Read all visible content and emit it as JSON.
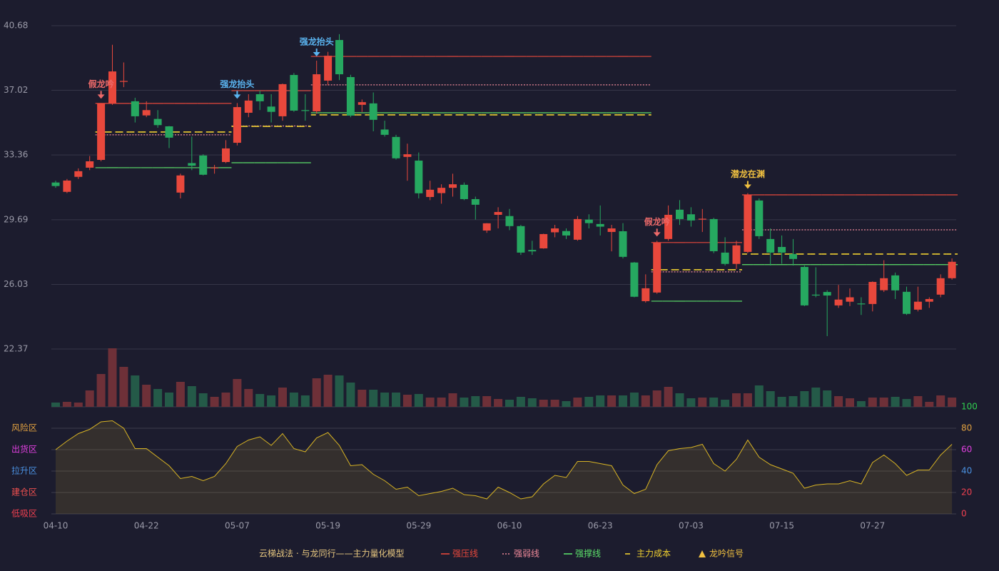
{
  "chart_data": {
    "type": "candlestick",
    "title": "云梯战法 · 与龙同行——主力量化模型",
    "categories": [
      "04-10",
      null,
      null,
      null,
      null,
      null,
      null,
      null,
      "04-22",
      null,
      null,
      null,
      null,
      null,
      null,
      null,
      "05-07",
      null,
      null,
      null,
      null,
      null,
      null,
      null,
      "05-19",
      null,
      null,
      null,
      null,
      null,
      null,
      null,
      "05-29",
      null,
      null,
      null,
      null,
      null,
      null,
      null,
      "06-10",
      null,
      null,
      null,
      null,
      null,
      null,
      null,
      "06-23",
      null,
      null,
      null,
      null,
      null,
      null,
      null,
      "07-03",
      null,
      null,
      null,
      null,
      null,
      null,
      null,
      "07-15",
      null,
      null,
      null,
      null,
      null,
      null,
      null,
      "07-27",
      null,
      null,
      null,
      null,
      null,
      null,
      null
    ],
    "open": [
      31.8,
      31.27,
      32.12,
      32.64,
      33.08,
      36.28,
      37.5,
      36.4,
      35.6,
      35.4,
      34.98,
      31.23,
      32.9,
      33.33,
      32.6,
      32.96,
      34.05,
      35.75,
      36.8,
      36.1,
      35.55,
      37.89,
      35.9,
      35.83,
      37.57,
      39.87,
      37.77,
      36.2,
      36.28,
      34.8,
      34.38,
      33.25,
      33.04,
      30.98,
      31.2,
      31.5,
      31.67,
      30.86,
      29.08,
      29.97,
      29.9,
      29.33,
      27.98,
      28.07,
      28.98,
      29.05,
      28.56,
      29.7,
      29.45,
      29.0,
      29.04,
      27.27,
      25.08,
      25.57,
      28.6,
      30.26,
      30.0,
      29.7,
      29.73,
      27.83,
      27.19,
      27.87,
      30.78,
      28.6,
      28.15,
      27.75,
      27.02,
      25.45,
      25.6,
      24.84,
      25.05,
      24.95,
      24.92,
      25.7,
      26.54,
      25.61,
      24.6,
      25.05,
      25.45,
      26.38
    ],
    "high": [
      31.9,
      32.0,
      32.6,
      33.3,
      36.3,
      39.6,
      38.6,
      36.6,
      36.4,
      35.9,
      35.0,
      32.3,
      34.4,
      33.4,
      32.8,
      34.2,
      36.3,
      36.8,
      37.0,
      36.8,
      37.4,
      38.0,
      36.8,
      38.7,
      39.2,
      40.2,
      37.9,
      36.5,
      36.9,
      35.3,
      34.5,
      34.0,
      33.5,
      31.9,
      31.7,
      32.3,
      31.8,
      31.0,
      29.5,
      30.4,
      30.3,
      29.4,
      28.5,
      28.9,
      29.4,
      29.2,
      29.9,
      30.0,
      30.5,
      29.4,
      29.5,
      27.3,
      26.6,
      28.5,
      30.5,
      30.8,
      30.4,
      30.3,
      29.8,
      28.7,
      28.5,
      31.2,
      30.9,
      29.2,
      28.8,
      28.6,
      27.1,
      27.0,
      25.7,
      26.0,
      25.8,
      25.3,
      26.2,
      27.4,
      26.7,
      25.9,
      25.9,
      25.3,
      26.6,
      27.5
    ],
    "low": [
      31.5,
      31.2,
      32.0,
      32.5,
      33.0,
      36.2,
      37.2,
      35.2,
      35.5,
      34.9,
      33.75,
      30.9,
      32.5,
      32.2,
      32.3,
      32.9,
      33.9,
      35.5,
      35.9,
      35.2,
      35.3,
      35.8,
      35.3,
      35.7,
      37.3,
      37.6,
      35.5,
      35.8,
      34.7,
      34.4,
      33.1,
      31.9,
      30.9,
      30.8,
      30.6,
      31.0,
      30.8,
      29.7,
      28.95,
      29.2,
      29.1,
      27.7,
      27.7,
      28.05,
      28.7,
      28.6,
      28.5,
      29.2,
      28.8,
      27.9,
      27.5,
      25.3,
      25.0,
      25.5,
      28.5,
      29.4,
      29.3,
      29.0,
      27.8,
      27.1,
      26.9,
      27.8,
      28.6,
      27.1,
      27.2,
      27.1,
      24.8,
      25.3,
      23.1,
      24.7,
      24.8,
      24.3,
      24.5,
      25.6,
      25.2,
      24.3,
      24.5,
      24.7,
      25.3,
      26.3
    ],
    "close": [
      31.6,
      31.91,
      32.44,
      33.0,
      36.28,
      38.09,
      37.55,
      35.55,
      35.9,
      35.05,
      34.34,
      32.2,
      32.75,
      32.24,
      32.65,
      33.73,
      36.07,
      36.44,
      36.4,
      35.8,
      37.37,
      35.87,
      35.85,
      37.93,
      38.98,
      37.93,
      35.59,
      36.35,
      35.35,
      34.5,
      33.17,
      33.4,
      31.19,
      31.39,
      31.5,
      31.7,
      30.86,
      30.54,
      29.49,
      30.13,
      29.33,
      27.83,
      27.9,
      28.88,
      29.2,
      28.8,
      29.73,
      29.5,
      29.3,
      29.2,
      27.59,
      25.33,
      25.81,
      28.4,
      29.97,
      29.73,
      29.65,
      29.75,
      27.91,
      27.19,
      28.24,
      31.1,
      28.76,
      27.83,
      27.83,
      27.47,
      24.84,
      25.4,
      25.4,
      25.17,
      25.3,
      24.9,
      26.17,
      26.38,
      25.69,
      24.36,
      25.05,
      25.2,
      26.38,
      27.31
    ],
    "up_color": "#e8483c",
    "down_color": "#26a860",
    "ylim": [
      22.37,
      40.68
    ],
    "yticks": [
      40.68,
      37.02,
      33.36,
      29.69,
      26.03,
      22.37
    ],
    "grid": true,
    "levels": [
      {
        "name": "强压线",
        "color": "#e8483c",
        "style": "solid",
        "values": [
          null,
          null,
          null,
          null,
          36.28,
          36.28,
          36.28,
          36.28,
          36.28,
          36.28,
          36.28,
          36.28,
          36.28,
          36.28,
          36.28,
          36.28,
          37.0,
          37.0,
          37.0,
          37.0,
          37.0,
          37.0,
          37.0,
          38.94,
          38.94,
          38.94,
          38.94,
          38.94,
          38.94,
          38.94,
          38.94,
          38.94,
          38.94,
          38.94,
          38.94,
          38.94,
          38.94,
          38.94,
          38.94,
          38.94,
          38.94,
          38.94,
          38.94,
          38.94,
          38.94,
          38.94,
          38.94,
          38.94,
          38.94,
          38.94,
          38.94,
          38.94,
          38.94,
          28.4,
          28.4,
          28.4,
          28.4,
          28.4,
          28.4,
          28.4,
          28.4,
          31.1,
          31.1,
          31.1,
          31.1,
          31.1,
          31.1,
          31.1,
          31.1,
          31.1,
          31.1,
          31.1,
          31.1,
          31.1,
          31.1,
          31.1,
          31.1,
          31.1,
          31.1,
          31.1
        ]
      },
      {
        "name": "强弱线",
        "color": "#f08a9a",
        "style": "dotted",
        "values": [
          null,
          null,
          null,
          null,
          34.5,
          34.5,
          34.5,
          34.5,
          34.5,
          34.5,
          34.5,
          34.5,
          34.5,
          34.5,
          34.5,
          34.5,
          35.0,
          35.0,
          35.0,
          35.0,
          35.0,
          35.0,
          35.0,
          37.33,
          37.33,
          37.33,
          37.33,
          37.33,
          37.33,
          37.33,
          37.33,
          37.33,
          37.33,
          37.33,
          37.33,
          37.33,
          37.33,
          37.33,
          37.33,
          37.33,
          37.33,
          37.33,
          37.33,
          37.33,
          37.33,
          37.33,
          37.33,
          37.33,
          37.33,
          37.33,
          37.33,
          37.33,
          37.33,
          26.74,
          26.74,
          26.74,
          26.74,
          26.74,
          26.74,
          26.74,
          26.74,
          29.12,
          29.12,
          29.12,
          29.12,
          29.12,
          29.12,
          29.12,
          29.12,
          29.12,
          29.12,
          29.12,
          29.12,
          29.12,
          29.12,
          29.12,
          29.12,
          29.12,
          29.12,
          29.12
        ]
      },
      {
        "name": "强撑线",
        "color": "#5ce06a",
        "style": "solid",
        "values": [
          null,
          null,
          null,
          null,
          32.64,
          32.64,
          32.64,
          32.64,
          32.64,
          32.64,
          32.64,
          32.64,
          32.64,
          32.64,
          32.64,
          32.64,
          32.92,
          32.92,
          32.92,
          32.92,
          32.92,
          32.92,
          32.92,
          35.75,
          35.75,
          35.75,
          35.75,
          35.75,
          35.75,
          35.75,
          35.75,
          35.75,
          35.75,
          35.75,
          35.75,
          35.75,
          35.75,
          35.75,
          35.75,
          35.75,
          35.75,
          35.75,
          35.75,
          35.75,
          35.75,
          35.75,
          35.75,
          35.75,
          35.75,
          35.75,
          35.75,
          35.75,
          35.75,
          25.08,
          25.08,
          25.08,
          25.08,
          25.08,
          25.08,
          25.08,
          25.08,
          27.15,
          27.15,
          27.15,
          27.15,
          27.15,
          27.15,
          27.15,
          27.15,
          27.15,
          27.15,
          27.15,
          27.15,
          27.15,
          27.15,
          27.15,
          27.15,
          27.15,
          27.15,
          27.15
        ]
      },
      {
        "name": "主力成本",
        "color": "#f0d030",
        "style": "dashed",
        "values": [
          null,
          null,
          null,
          null,
          34.66,
          34.66,
          34.66,
          34.66,
          34.66,
          34.66,
          34.66,
          34.66,
          34.66,
          34.66,
          34.66,
          34.66,
          34.98,
          34.98,
          34.98,
          34.98,
          34.98,
          34.98,
          34.98,
          35.63,
          35.63,
          35.63,
          35.63,
          35.63,
          35.63,
          35.63,
          35.63,
          35.63,
          35.63,
          35.63,
          35.63,
          35.63,
          35.63,
          35.63,
          35.63,
          35.63,
          35.63,
          35.63,
          35.63,
          35.63,
          35.63,
          35.63,
          35.63,
          35.63,
          35.63,
          35.63,
          35.63,
          35.63,
          35.63,
          26.86,
          26.86,
          26.86,
          26.86,
          26.86,
          26.86,
          26.86,
          26.86,
          27.75,
          27.75,
          27.75,
          27.75,
          27.75,
          27.75,
          27.75,
          27.75,
          27.75,
          27.75,
          27.75,
          27.75,
          27.75,
          27.75,
          27.75,
          27.75,
          27.75,
          27.75,
          27.75
        ]
      }
    ],
    "signals": [
      null,
      null,
      null,
      null,
      "假龙吟",
      null,
      null,
      null,
      null,
      null,
      null,
      null,
      null,
      null,
      null,
      null,
      "强龙抬头",
      null,
      null,
      null,
      null,
      null,
      null,
      "强龙抬头",
      null,
      null,
      null,
      null,
      null,
      null,
      null,
      null,
      null,
      null,
      null,
      null,
      null,
      null,
      null,
      null,
      null,
      null,
      null,
      null,
      null,
      null,
      null,
      null,
      null,
      null,
      null,
      null,
      null,
      "假龙吟",
      null,
      null,
      null,
      null,
      null,
      null,
      null,
      "潜龙在渊",
      null,
      null,
      null,
      null,
      null,
      null,
      null,
      null,
      null,
      null,
      null,
      null,
      null,
      null,
      null,
      null,
      null,
      null
    ],
    "signal_colors": {
      "假龙吟": "#ee6a6a",
      "强龙抬头": "#5ab4f0",
      "潜龙在渊": "#f0c040"
    },
    "signal_legend": {
      "name": "龙吟信号",
      "color": "#f0c040"
    },
    "volume": [
      6,
      7,
      6,
      23,
      46,
      82,
      56,
      44,
      31,
      25,
      20,
      35,
      29,
      19,
      14,
      20,
      39,
      25,
      18,
      16,
      27,
      20,
      16,
      40,
      45,
      44,
      34,
      24,
      24,
      20,
      20,
      17,
      18,
      13,
      13,
      19,
      13,
      15,
      15,
      11,
      10,
      14,
      12,
      10,
      10,
      8,
      13,
      14,
      16,
      16,
      16,
      20,
      16,
      23,
      28,
      19,
      12,
      13,
      13,
      10,
      19,
      19,
      30,
      22,
      14,
      15,
      22,
      27,
      23,
      15,
      12,
      8,
      13,
      13,
      14,
      11,
      15,
      7,
      16,
      13
    ],
    "volume_up_color": "#6e3038",
    "volume_down_color": "#245a48",
    "oscillator": {
      "color": "#d8b424",
      "values": [
        60,
        68,
        75,
        79,
        86,
        87,
        80,
        61,
        61,
        53,
        45,
        33,
        35,
        31,
        35,
        47,
        63,
        69,
        72,
        64,
        75,
        61,
        58,
        71,
        76,
        64,
        45,
        46,
        37,
        31,
        23,
        25,
        17,
        19,
        21,
        24,
        18,
        17,
        14,
        25,
        20,
        14,
        16,
        28,
        36,
        34,
        49,
        49,
        47,
        45,
        27,
        19,
        23,
        46,
        59,
        61,
        62,
        65,
        47,
        40,
        51,
        69,
        53,
        46,
        42,
        38,
        24,
        27,
        28,
        28,
        31,
        28,
        48,
        55,
        47,
        36,
        41,
        41,
        55,
        65
      ],
      "y2lim": [
        0,
        100
      ],
      "y2ticks": [
        0,
        20,
        40,
        60,
        80,
        100
      ],
      "tick_colors": [
        "#f04050",
        "#f04050",
        "#4a90e0",
        "#e040e0",
        "#e0a040",
        "#30d050"
      ],
      "zones": [
        {
          "label": "风险区",
          "value": 80,
          "color": "#e0a040"
        },
        {
          "label": "出货区",
          "value": 60,
          "color": "#e040e0"
        },
        {
          "label": "拉升区",
          "value": 40,
          "color": "#4a90e0"
        },
        {
          "label": "建仓区",
          "value": 20,
          "color": "#f05050"
        },
        {
          "label": "低吸区",
          "value": 0,
          "color": "#f04050"
        }
      ]
    }
  }
}
